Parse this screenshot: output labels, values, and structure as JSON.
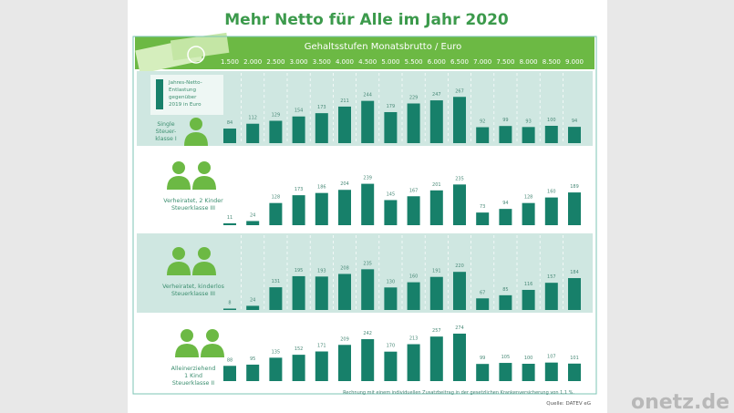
{
  "chart_data": {
    "type": "bar",
    "title": "Mehr Netto für Alle im Jahr 2020",
    "xlabel": "Gehaltsstufen Monatsbrutto / Euro",
    "categories": [
      "1.500",
      "2.000",
      "2.500",
      "3.000",
      "3.500",
      "4.000",
      "4.500",
      "5.000",
      "5.500",
      "6.000",
      "6.500",
      "7.000",
      "7.500",
      "8.000",
      "8.500",
      "9.000"
    ],
    "legend": [
      "Jahres-Netto-",
      "Entlastung",
      "gegenüber",
      "2019 in Euro"
    ],
    "series": [
      {
        "name": "Single Steuerklasse I",
        "label_lines": [
          "Single",
          "Steuer-",
          "klasse I"
        ],
        "values": [
          84,
          112,
          129,
          154,
          173,
          211,
          244,
          179,
          229,
          247,
          267,
          92,
          99,
          93,
          100,
          94
        ]
      },
      {
        "name": "Verheiratet, 2 Kinder Steuerklasse III",
        "label_lines": [
          "Verheiratet, 2 Kinder",
          "Steuerklasse III"
        ],
        "values": [
          11,
          24,
          128,
          173,
          186,
          204,
          239,
          145,
          167,
          201,
          235,
          73,
          94,
          128,
          160,
          189
        ]
      },
      {
        "name": "Verheiratet, kinderlos Steuerklasse III",
        "label_lines": [
          "Verheiratet, kinderlos",
          "Steuerklasse III"
        ],
        "values": [
          8,
          24,
          131,
          195,
          193,
          208,
          235,
          130,
          160,
          191,
          220,
          67,
          85,
          116,
          157,
          184
        ]
      },
      {
        "name": "Alleinerziehend 1 Kind Steuerklasse II",
        "label_lines": [
          "Alleinerziehend",
          "1 Kind",
          "Steuerklasse II"
        ],
        "values": [
          88,
          95,
          135,
          152,
          171,
          209,
          242,
          170,
          213,
          257,
          274,
          99,
          105,
          100,
          107,
          101
        ]
      }
    ],
    "footnote": "Rechnung mit einem individuellen Zusatzbeitrag in der gesetzlichen Krankenversicherung von 1,1 %.",
    "source": "Quelle: DATEV eG",
    "colors": {
      "bar": "#17806a",
      "header": "#6cb944",
      "title": "#3c9a4c",
      "row_band": "#cfe7e1"
    }
  },
  "watermark": "onetz.de"
}
